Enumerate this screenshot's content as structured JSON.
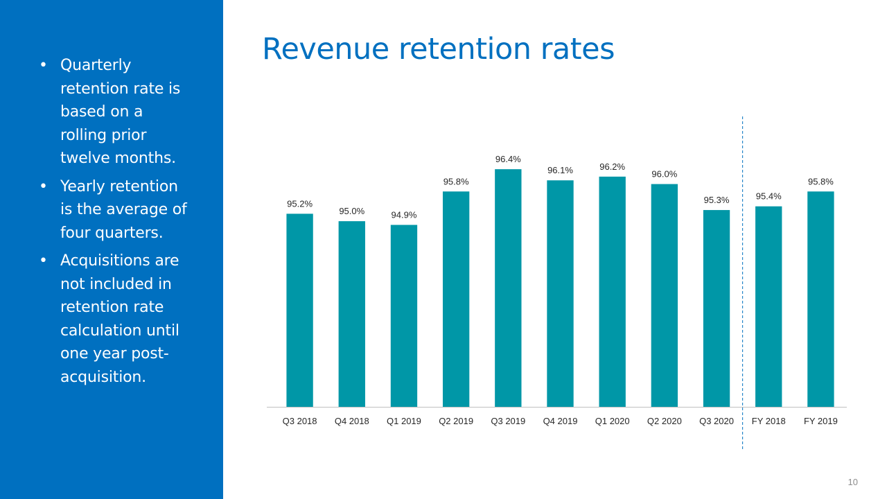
{
  "sidebar": {
    "bullets": [
      "Quarterly retention rate is based on a rolling prior twelve months.",
      "Yearly retention is the average of four quarters.",
      "Acquisitions are not included in retention rate calculation until one year post-acquisition."
    ]
  },
  "slide": {
    "title": "Revenue retention rates",
    "page_number": "10"
  },
  "colors": {
    "sidebar": "#0070c0",
    "title": "#0070c0",
    "bar": "#0097a7",
    "separator": "#0070c0"
  },
  "chart_data": {
    "type": "bar",
    "title": "",
    "xlabel": "",
    "ylabel": "",
    "categories": [
      "Q3 2018",
      "Q4 2018",
      "Q1 2019",
      "Q2 2019",
      "Q3 2019",
      "Q4 2019",
      "Q1 2020",
      "Q2 2020",
      "Q3 2020",
      "FY 2018",
      "FY 2019"
    ],
    "values": [
      95.2,
      95.0,
      94.9,
      95.8,
      96.4,
      96.1,
      96.2,
      96.0,
      95.3,
      95.4,
      95.8
    ],
    "data_labels": [
      "95.2%",
      "95.0%",
      "94.9%",
      "95.8%",
      "96.4%",
      "96.1%",
      "96.2%",
      "96.0%",
      "95.3%",
      "95.4%",
      "95.8%"
    ],
    "ylim": [
      90.0,
      97.0
    ],
    "grid": false,
    "legend": "none",
    "separator_after_category": "Q3 2020"
  }
}
